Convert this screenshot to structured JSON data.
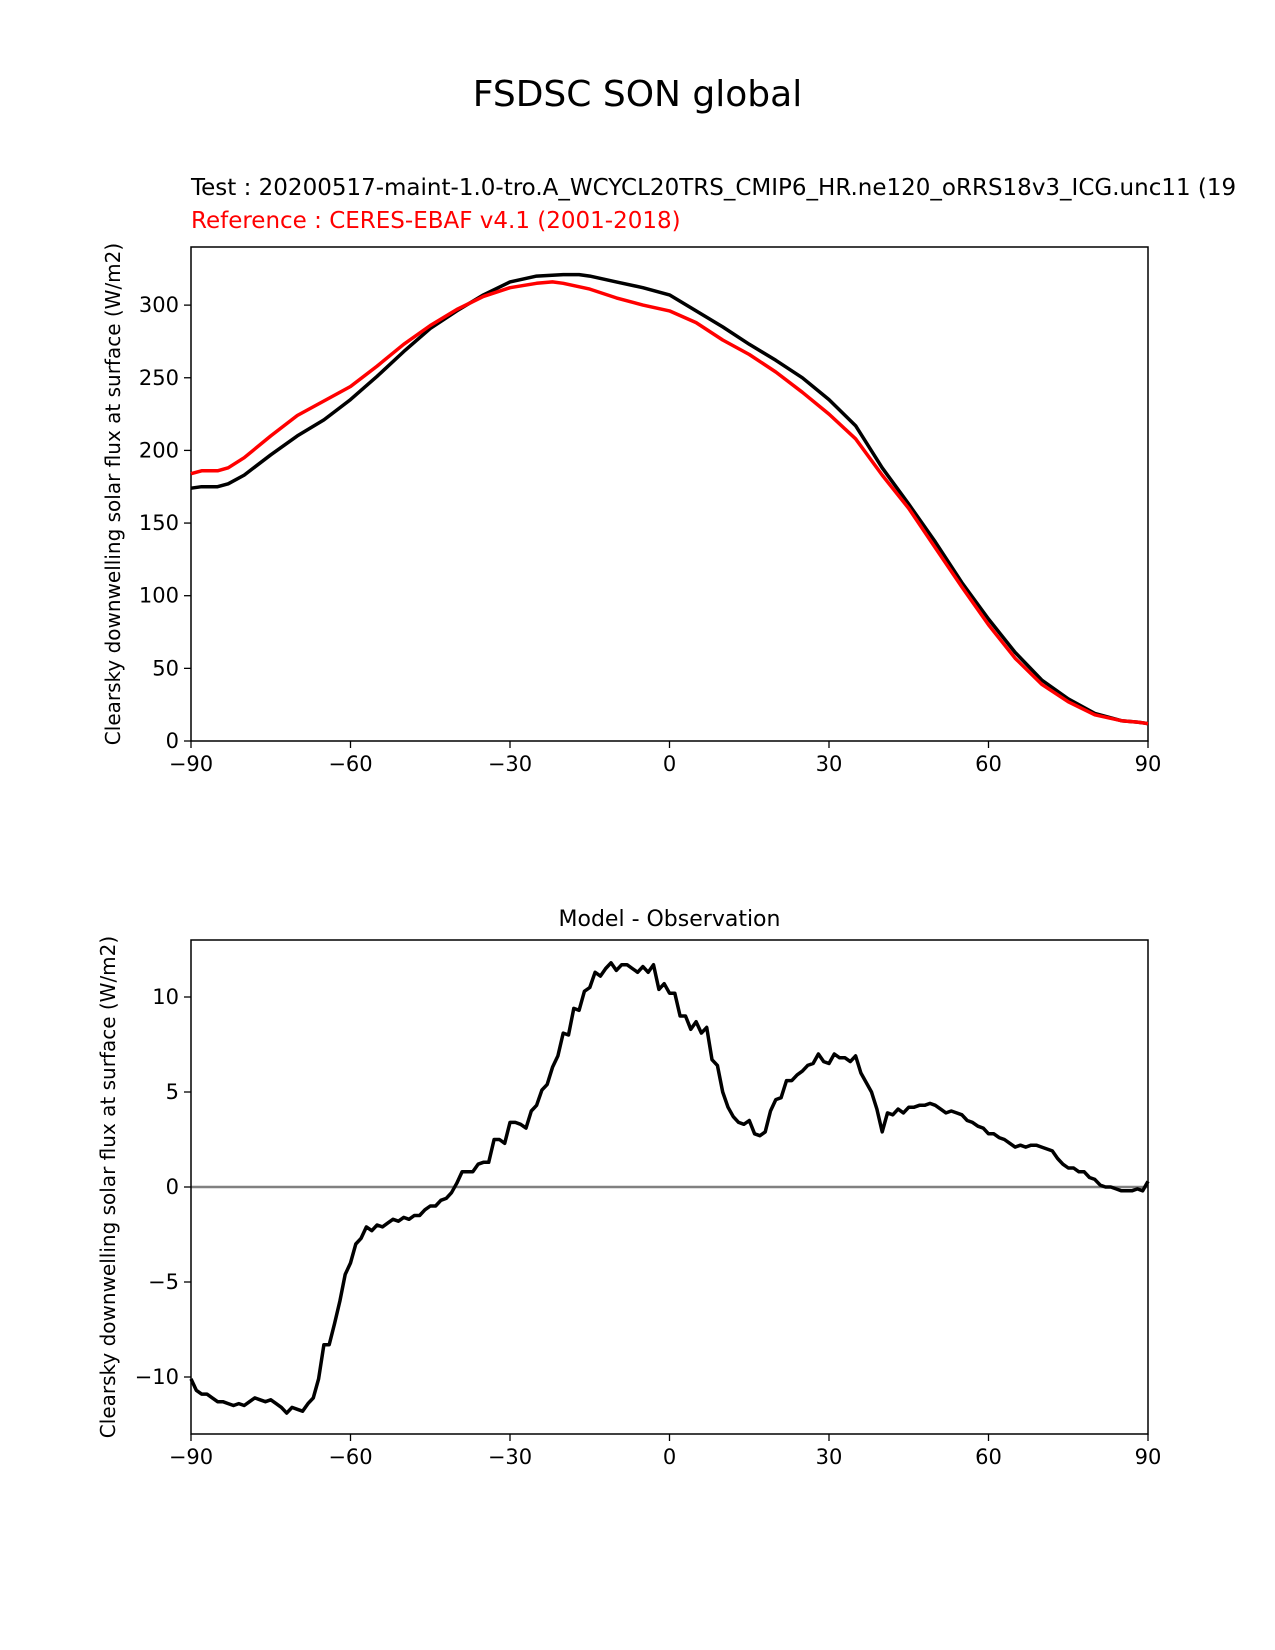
{
  "figure": {
    "title": "FSDSC SON global",
    "test_label": "Test : 20200517-maint-1.0-tro.A_WCYCL20TRS_CMIP6_HR.ne120_oRRS18v3_ICG.unc11 (19",
    "reference_label": "Reference : CERES-EBAF v4.1 (2001-2018)"
  },
  "colors": {
    "test": "#000000",
    "reference": "#ff0000",
    "zero_line": "#808080"
  },
  "chart_data": [
    {
      "type": "line",
      "title": "",
      "xlabel": "",
      "ylabel": "Clearsky downwelling solar flux at surface (W/m2)",
      "xlim": [
        -90,
        90
      ],
      "ylim": [
        0,
        340
      ],
      "xticks": [
        -90,
        -60,
        -30,
        0,
        30,
        60,
        90
      ],
      "xtick_labels": [
        "−90",
        "−60",
        "−30",
        "0",
        "30",
        "60",
        "90"
      ],
      "yticks": [
        0,
        50,
        100,
        150,
        200,
        250,
        300
      ],
      "ytick_labels": [
        "0",
        "50",
        "100",
        "150",
        "200",
        "250",
        "300"
      ],
      "grid": false,
      "series": [
        {
          "x": [
            -90,
            -88,
            -85,
            -83,
            -80,
            -75,
            -70,
            -65,
            -60,
            -55,
            -50,
            -45,
            -40,
            -35,
            -30,
            -25,
            -20,
            -17,
            -15,
            -10,
            -5,
            0,
            5,
            10,
            15,
            20,
            25,
            30,
            35,
            40,
            45,
            50,
            55,
            60,
            65,
            70,
            75,
            80,
            85,
            88,
            90
          ],
          "values": [
            174,
            175,
            175,
            177,
            183,
            197,
            210,
            221,
            235,
            251,
            268,
            284,
            296,
            307,
            316,
            320,
            321,
            321,
            320,
            316,
            312,
            307,
            296,
            285,
            273,
            262,
            250,
            235,
            217,
            188,
            163,
            137,
            109,
            84,
            61,
            42,
            29,
            19,
            14,
            13,
            12
          ]
        },
        {
          "x": [
            -90,
            -88,
            -85,
            -83,
            -80,
            -75,
            -70,
            -65,
            -60,
            -55,
            -50,
            -45,
            -40,
            -35,
            -30,
            -25,
            -22,
            -20,
            -15,
            -10,
            -5,
            0,
            5,
            10,
            15,
            20,
            25,
            30,
            35,
            40,
            45,
            50,
            55,
            60,
            65,
            70,
            75,
            80,
            85,
            88,
            90
          ],
          "values": [
            184,
            186,
            186,
            188,
            195,
            210,
            224,
            234,
            244,
            258,
            273,
            286,
            297,
            306,
            312,
            315,
            316,
            315,
            311,
            305,
            300,
            296,
            288,
            276,
            266,
            254,
            240,
            225,
            208,
            183,
            160,
            133,
            106,
            80,
            57,
            39,
            27,
            18,
            14,
            13,
            12
          ]
        }
      ]
    },
    {
      "type": "line",
      "title": "Model - Observation",
      "xlabel": "",
      "ylabel": "Clearsky downwelling solar flux at surface (W/m2)",
      "xlim": [
        -90,
        90
      ],
      "ylim": [
        -13,
        13
      ],
      "xticks": [
        -90,
        -60,
        -30,
        0,
        30,
        60,
        90
      ],
      "xtick_labels": [
        "−90",
        "−60",
        "−30",
        "0",
        "30",
        "60",
        "90"
      ],
      "yticks": [
        -10,
        -5,
        0,
        5,
        10
      ],
      "ytick_labels": [
        "−10",
        "−5",
        "0",
        "5",
        "10"
      ],
      "zero_line": 0,
      "grid": false,
      "series": [
        {
          "x": [
            -90,
            -89,
            -88,
            -87,
            -86,
            -85,
            -84,
            -83,
            -82,
            -81,
            -80,
            -79,
            -78,
            -77,
            -76,
            -75,
            -74,
            -73,
            -72,
            -71,
            -70,
            -69,
            -68,
            -67,
            -66,
            -65,
            -64,
            -63,
            -62,
            -61,
            -60,
            -59,
            -58,
            -57,
            -56,
            -55,
            -54,
            -53,
            -52,
            -51,
            -50,
            -49,
            -48,
            -47,
            -46,
            -45,
            -44,
            -43,
            -42,
            -41,
            -40,
            -39,
            -38,
            -37,
            -36,
            -35,
            -34,
            -33,
            -32,
            -31,
            -30,
            -29,
            -28,
            -27,
            -26,
            -25,
            -24,
            -23,
            -22,
            -21,
            -20,
            -19,
            -18,
            -17,
            -16,
            -15,
            -14,
            -13,
            -12,
            -11,
            -10,
            -9,
            -8,
            -7,
            -6,
            -5,
            -4,
            -3,
            -2,
            -1,
            0,
            1,
            2,
            3,
            4,
            5,
            6,
            7,
            8,
            9,
            10,
            11,
            12,
            13,
            14,
            15,
            16,
            17,
            18,
            19,
            20,
            21,
            22,
            23,
            24,
            25,
            26,
            27,
            28,
            29,
            30,
            31,
            32,
            33,
            34,
            35,
            36,
            37,
            38,
            39,
            40,
            41,
            42,
            43,
            44,
            45,
            46,
            47,
            48,
            49,
            50,
            51,
            52,
            53,
            54,
            55,
            56,
            57,
            58,
            59,
            60,
            61,
            62,
            63,
            64,
            65,
            66,
            67,
            68,
            69,
            70,
            71,
            72,
            73,
            74,
            75,
            76,
            77,
            78,
            79,
            80,
            81,
            82,
            83,
            84,
            85,
            86,
            87,
            88,
            89,
            90
          ],
          "values": [
            -10.1,
            -10.7,
            -10.9,
            -10.9,
            -11.1,
            -11.3,
            -11.3,
            -11.4,
            -11.5,
            -11.4,
            -11.5,
            -11.3,
            -11.1,
            -11.2,
            -11.3,
            -11.2,
            -11.4,
            -11.6,
            -11.9,
            -11.6,
            -11.7,
            -11.8,
            -11.4,
            -11.1,
            -10.1,
            -8.3,
            -8.3,
            -7.2,
            -6.0,
            -4.6,
            -4.0,
            -3.0,
            -2.7,
            -2.1,
            -2.3,
            -2.0,
            -2.1,
            -1.9,
            -1.7,
            -1.8,
            -1.6,
            -1.7,
            -1.5,
            -1.5,
            -1.2,
            -1.0,
            -1.0,
            -0.7,
            -0.6,
            -0.3,
            0.2,
            0.8,
            0.8,
            0.8,
            1.2,
            1.3,
            1.3,
            2.5,
            2.5,
            2.3,
            3.4,
            3.4,
            3.3,
            3.1,
            4.0,
            4.3,
            5.1,
            5.4,
            6.3,
            6.9,
            8.1,
            8.0,
            9.4,
            9.3,
            10.3,
            10.5,
            11.3,
            11.1,
            11.5,
            11.8,
            11.4,
            11.7,
            11.7,
            11.5,
            11.3,
            11.6,
            11.3,
            11.7,
            10.4,
            10.7,
            10.2,
            10.2,
            9.0,
            9.0,
            8.3,
            8.7,
            8.1,
            8.4,
            6.7,
            6.4,
            5.0,
            4.2,
            3.7,
            3.4,
            3.3,
            3.5,
            2.8,
            2.7,
            2.9,
            4.0,
            4.6,
            4.7,
            5.6,
            5.6,
            5.9,
            6.1,
            6.4,
            6.5,
            7.0,
            6.6,
            6.5,
            7.0,
            6.8,
            6.8,
            6.6,
            6.9,
            6.0,
            5.5,
            5.0,
            4.1,
            2.9,
            3.9,
            3.8,
            4.1,
            3.9,
            4.2,
            4.2,
            4.3,
            4.3,
            4.4,
            4.3,
            4.1,
            3.9,
            4.0,
            3.9,
            3.8,
            3.5,
            3.4,
            3.2,
            3.1,
            2.8,
            2.8,
            2.6,
            2.5,
            2.3,
            2.1,
            2.2,
            2.1,
            2.2,
            2.2,
            2.1,
            2.0,
            1.9,
            1.5,
            1.2,
            1.0,
            1.0,
            0.8,
            0.8,
            0.5,
            0.4,
            0.1,
            0.0,
            0.0,
            -0.1,
            -0.2,
            -0.2,
            -0.2,
            -0.1,
            -0.2,
            0.3
          ]
        }
      ]
    }
  ]
}
